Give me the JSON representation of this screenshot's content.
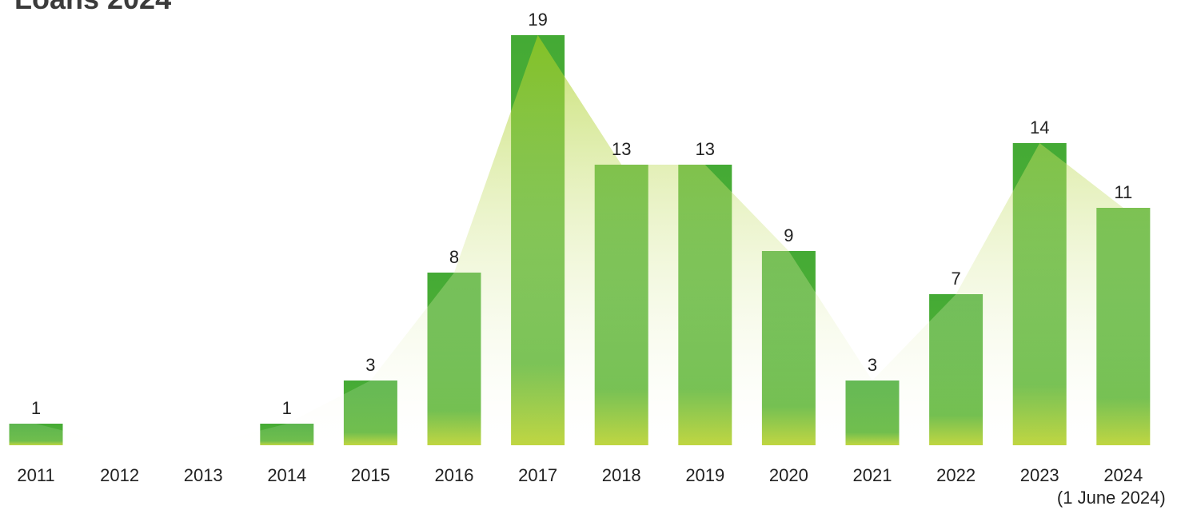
{
  "header": {
    "title_fragment": "Loans 2024"
  },
  "colors": {
    "bar_top": "#44aa35",
    "bar_mid": "#5cb535",
    "bar_bottom": "#b8d12a",
    "area_top": "#a8ce1e",
    "area_bottom": "#ffffff",
    "text": "#222222"
  },
  "chart_data": {
    "type": "bar",
    "categories": [
      "2011",
      "2012",
      "2013",
      "2014",
      "2015",
      "2016",
      "2017",
      "2018",
      "2019",
      "2020",
      "2021",
      "2022",
      "2023",
      "2024"
    ],
    "values": [
      1,
      0,
      0,
      1,
      3,
      8,
      19,
      13,
      13,
      9,
      3,
      7,
      14,
      11
    ],
    "data_labels": [
      "1",
      "",
      "",
      "1",
      "3",
      "8",
      "19",
      "13",
      "13",
      "9",
      "3",
      "7",
      "14",
      "11"
    ],
    "last_category_note": "(1 June 2024)",
    "overlay": "area",
    "ylim": [
      0,
      19
    ],
    "grid": false,
    "legend": "none"
  }
}
